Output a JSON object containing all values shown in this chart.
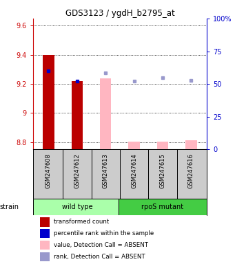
{
  "title": "GDS3123 / ygdH_b2795_at",
  "samples": [
    "GSM247608",
    "GSM247612",
    "GSM247613",
    "GSM247614",
    "GSM247615",
    "GSM247616"
  ],
  "ylim_left": [
    8.75,
    9.65
  ],
  "ylim_right": [
    0,
    100
  ],
  "yticks_left": [
    8.8,
    9.0,
    9.2,
    9.4,
    9.6
  ],
  "yticks_right": [
    0,
    25,
    50,
    75,
    100
  ],
  "ytick_labels_left": [
    "8.8",
    "9",
    "9.2",
    "9.4",
    "9.6"
  ],
  "ytick_labels_right": [
    "0",
    "25",
    "50",
    "75",
    "100%"
  ],
  "bar_values": [
    9.4,
    9.22,
    null,
    null,
    null,
    null
  ],
  "bar_absent_values": [
    null,
    null,
    9.24,
    8.805,
    8.805,
    8.815
  ],
  "rank_present_values": [
    9.29,
    9.22,
    null,
    null,
    null,
    null
  ],
  "rank_absent_values": [
    null,
    null,
    9.275,
    9.22,
    9.245,
    9.225
  ],
  "bar_width": 0.4,
  "left_color": "#cc0000",
  "right_color": "#0000cc",
  "red_bar_color": "#bb0000",
  "pink_bar_color": "#FFB6C1",
  "blue_dot_color": "#0000cc",
  "lblue_dot_color": "#9999cc",
  "bg_color": "#ffffff",
  "label_bg": "#cccccc",
  "wt_color": "#aaffaa",
  "rpos_color": "#44cc44",
  "legend_items": [
    {
      "label": "transformed count",
      "color": "#bb0000"
    },
    {
      "label": "percentile rank within the sample",
      "color": "#0000cc"
    },
    {
      "label": "value, Detection Call = ABSENT",
      "color": "#FFB6C1"
    },
    {
      "label": "rank, Detection Call = ABSENT",
      "color": "#9999cc"
    }
  ]
}
